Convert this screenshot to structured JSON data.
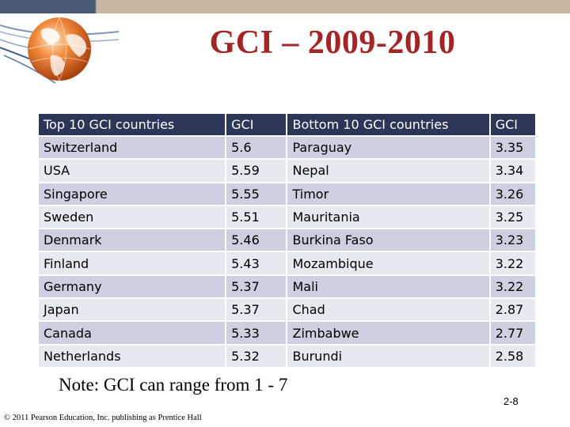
{
  "slide": {
    "title": "GCI – 2009-2010",
    "note": "Note: GCI can range from 1 - 7",
    "page_number": "2-8",
    "copyright": "© 2011 Pearson Education, Inc. publishing as Prentice Hall"
  },
  "colors": {
    "title": "#a32525",
    "header_bg": "#2d3558",
    "row_dark": "#ccd0e1",
    "row_light": "#e7e9f1"
  },
  "table": {
    "headers": [
      "Top 10 GCI countries",
      "GCI",
      "Bottom 10 GCI countries",
      "GCI"
    ],
    "rows": [
      [
        "Switzerland",
        "5.6",
        "Paraguay",
        "3.35"
      ],
      [
        "USA",
        "5.59",
        "Nepal",
        "3.34"
      ],
      [
        "Singapore",
        "5.55",
        "Timor",
        "3.26"
      ],
      [
        "Sweden",
        "5.51",
        "Mauritania",
        "3.25"
      ],
      [
        "Denmark",
        "5.46",
        "Burkina Faso",
        "3.23"
      ],
      [
        "Finland",
        "5.43",
        "Mozambique",
        "3.22"
      ],
      [
        "Germany",
        "5.37",
        "Mali",
        "3.22"
      ],
      [
        "Japan",
        "5.37",
        "Chad",
        "2.87"
      ],
      [
        "Canada",
        "5.33",
        "Zimbabwe",
        "2.77"
      ],
      [
        "Netherlands",
        "5.32",
        "Burundi",
        "2.58"
      ]
    ]
  }
}
